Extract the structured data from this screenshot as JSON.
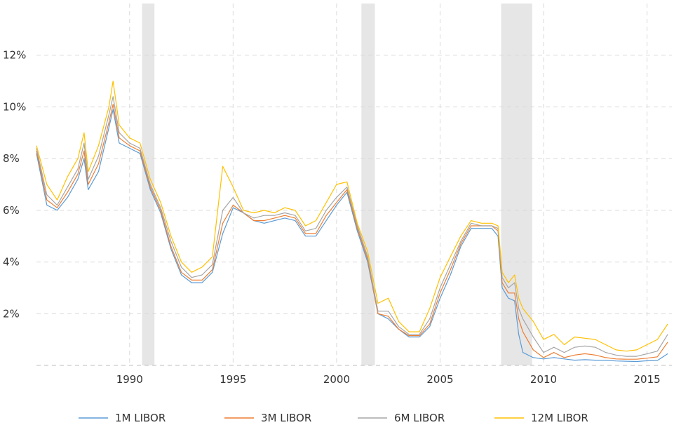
{
  "chart_data": {
    "type": "line",
    "title": "",
    "xlabel": "",
    "ylabel": "",
    "xlim": [
      1985.5,
      2016.2
    ],
    "ylim": [
      0,
      14
    ],
    "x_ticks": [
      {
        "value": 1990,
        "label": "1990"
      },
      {
        "value": 1995,
        "label": "1995"
      },
      {
        "value": 2000,
        "label": "2000"
      },
      {
        "value": 2005,
        "label": "2005"
      },
      {
        "value": 2010,
        "label": "2010"
      },
      {
        "value": 2015,
        "label": "2015"
      }
    ],
    "y_ticks": [
      {
        "value": 2,
        "label": "2%"
      },
      {
        "value": 4,
        "label": "4%"
      },
      {
        "value": 6,
        "label": "6%"
      },
      {
        "value": 8,
        "label": "8%"
      },
      {
        "value": 10,
        "label": "10%"
      },
      {
        "value": 12,
        "label": "12%"
      }
    ],
    "grid": true,
    "legend_position": "bottom",
    "recessions": [
      {
        "start": 1990.6,
        "end": 1991.2
      },
      {
        "start": 2001.2,
        "end": 2001.85
      },
      {
        "start": 2007.95,
        "end": 2009.45
      }
    ],
    "x": [
      1985.5,
      1986.0,
      1986.5,
      1987.0,
      1987.5,
      1987.8,
      1988.0,
      1988.5,
      1989.0,
      1989.2,
      1989.5,
      1990.0,
      1990.5,
      1991.0,
      1991.5,
      1992.0,
      1992.5,
      1993.0,
      1993.5,
      1994.0,
      1994.5,
      1995.0,
      1995.5,
      1996.0,
      1996.5,
      1997.0,
      1997.5,
      1998.0,
      1998.5,
      1999.0,
      1999.5,
      2000.0,
      2000.5,
      2001.0,
      2001.5,
      2002.0,
      2002.5,
      2003.0,
      2003.5,
      2004.0,
      2004.5,
      2005.0,
      2005.5,
      2006.0,
      2006.5,
      2007.0,
      2007.5,
      2007.8,
      2008.0,
      2008.3,
      2008.6,
      2008.8,
      2009.0,
      2009.5,
      2010.0,
      2010.5,
      2011.0,
      2011.5,
      2012.0,
      2012.5,
      2013.0,
      2013.5,
      2014.0,
      2014.5,
      2015.0,
      2015.5,
      2016.0
    ],
    "series": [
      {
        "name": "1M LIBOR",
        "color": "#5b9bd5",
        "values": [
          8.2,
          6.2,
          6.0,
          6.5,
          7.2,
          8.0,
          6.8,
          7.5,
          9.2,
          9.9,
          8.6,
          8.4,
          8.2,
          6.8,
          5.9,
          4.5,
          3.5,
          3.2,
          3.2,
          3.6,
          5.1,
          6.1,
          5.9,
          5.6,
          5.5,
          5.6,
          5.7,
          5.6,
          5.0,
          5.0,
          5.6,
          6.2,
          6.7,
          5.2,
          4.0,
          2.0,
          1.8,
          1.4,
          1.1,
          1.1,
          1.5,
          2.6,
          3.5,
          4.6,
          5.3,
          5.3,
          5.3,
          5.0,
          3.0,
          2.6,
          2.5,
          1.2,
          0.5,
          0.3,
          0.25,
          0.3,
          0.25,
          0.2,
          0.22,
          0.2,
          0.2,
          0.17,
          0.16,
          0.15,
          0.18,
          0.19,
          0.45
        ]
      },
      {
        "name": "3M LIBOR",
        "color": "#ed7d31",
        "values": [
          8.3,
          6.4,
          6.1,
          6.7,
          7.4,
          8.3,
          7.0,
          7.8,
          9.4,
          10.1,
          8.8,
          8.5,
          8.3,
          6.9,
          6.0,
          4.6,
          3.6,
          3.3,
          3.3,
          3.7,
          5.5,
          6.2,
          5.9,
          5.6,
          5.6,
          5.7,
          5.8,
          5.7,
          5.1,
          5.1,
          5.8,
          6.3,
          6.8,
          5.3,
          4.1,
          2.0,
          1.9,
          1.4,
          1.15,
          1.15,
          1.6,
          2.8,
          3.7,
          4.7,
          5.4,
          5.4,
          5.4,
          5.2,
          3.2,
          2.8,
          2.8,
          1.8,
          1.3,
          0.6,
          0.3,
          0.5,
          0.3,
          0.4,
          0.45,
          0.4,
          0.3,
          0.25,
          0.24,
          0.24,
          0.28,
          0.33,
          0.9
        ]
      },
      {
        "name": "6M LIBOR",
        "color": "#a5a5a5",
        "values": [
          8.4,
          6.6,
          6.2,
          6.9,
          7.6,
          8.6,
          7.2,
          8.1,
          9.7,
          10.4,
          9.0,
          8.6,
          8.4,
          7.0,
          6.1,
          4.8,
          3.8,
          3.4,
          3.5,
          3.9,
          6.0,
          6.5,
          5.9,
          5.7,
          5.8,
          5.8,
          5.9,
          5.8,
          5.2,
          5.3,
          6.0,
          6.5,
          6.9,
          5.4,
          4.2,
          2.1,
          2.1,
          1.5,
          1.2,
          1.2,
          1.8,
          3.0,
          3.9,
          4.8,
          5.5,
          5.4,
          5.4,
          5.3,
          3.4,
          3.0,
          3.2,
          2.2,
          1.8,
          1.1,
          0.5,
          0.7,
          0.5,
          0.7,
          0.75,
          0.7,
          0.5,
          0.4,
          0.35,
          0.35,
          0.45,
          0.55,
          1.2
        ]
      },
      {
        "name": "12M LIBOR",
        "color": "#ffc000",
        "values": [
          8.5,
          7.0,
          6.4,
          7.3,
          8.0,
          9.0,
          7.5,
          8.5,
          10.0,
          11.0,
          9.3,
          8.8,
          8.6,
          7.2,
          6.3,
          5.0,
          4.0,
          3.6,
          3.8,
          4.2,
          7.7,
          6.9,
          6.0,
          5.9,
          6.0,
          5.9,
          6.1,
          6.0,
          5.4,
          5.6,
          6.3,
          7.0,
          7.1,
          5.5,
          4.4,
          2.4,
          2.6,
          1.7,
          1.3,
          1.3,
          2.2,
          3.4,
          4.2,
          5.0,
          5.6,
          5.5,
          5.5,
          5.4,
          3.6,
          3.2,
          3.5,
          2.6,
          2.2,
          1.7,
          1.0,
          1.2,
          0.8,
          1.1,
          1.05,
          1.0,
          0.8,
          0.6,
          0.55,
          0.6,
          0.8,
          1.0,
          1.6
        ]
      }
    ]
  }
}
